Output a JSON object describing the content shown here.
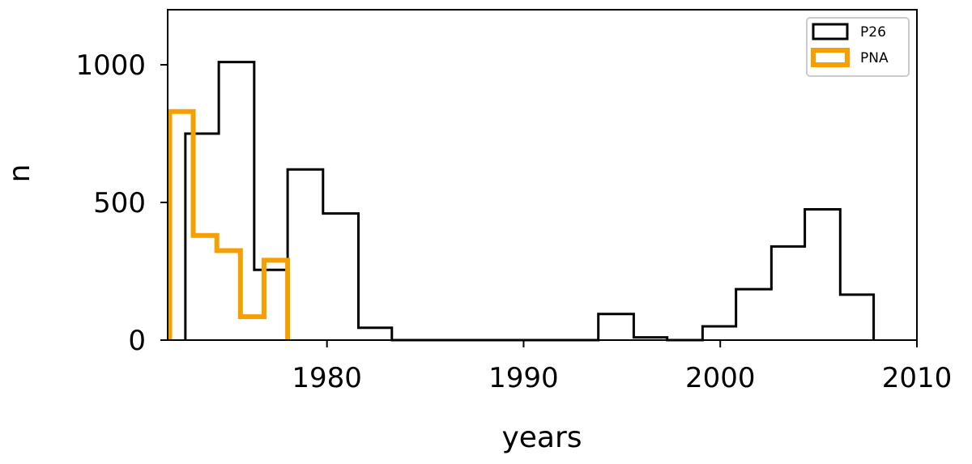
{
  "chart_data": {
    "type": "histogram",
    "xlabel": "years",
    "ylabel": "n",
    "xlim": [
      1971.9,
      2010
    ],
    "ylim": [
      0,
      1200
    ],
    "xticks": [
      1980,
      1990,
      2000,
      2010
    ],
    "yticks": [
      0,
      500,
      1000
    ],
    "grid": false,
    "legend_position": "top-right",
    "series": [
      {
        "name": "P26",
        "color": "#000000",
        "edges": [
          1972.8,
          1974.5,
          1976.3,
          1978.0,
          1979.8,
          1981.6,
          1983.3,
          1985.1,
          1986.8,
          1988.6,
          1990.3,
          1992.1,
          1993.8,
          1995.6,
          1997.3,
          1999.1,
          2000.8,
          2002.6,
          2004.3,
          2006.1,
          2007.8
        ],
        "values": [
          750,
          1010,
          255,
          620,
          460,
          45,
          0,
          0,
          0,
          0,
          0,
          0,
          95,
          10,
          0,
          50,
          185,
          340,
          475,
          165
        ]
      },
      {
        "name": "PNA",
        "color": "#f5a000",
        "edges": [
          1972.0,
          1973.2,
          1974.4,
          1975.6,
          1976.8,
          1978.0
        ],
        "values": [
          830,
          380,
          325,
          85,
          290
        ]
      }
    ]
  }
}
